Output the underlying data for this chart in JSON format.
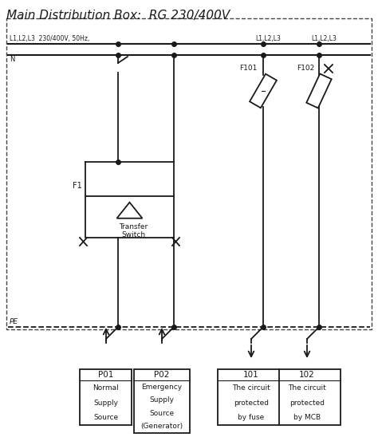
{
  "title": "Main Distribution Box:  RG 230/400V",
  "bg_color": "#ffffff",
  "line_color": "#1a1a1a",
  "label_L1L2L3_left": "L1,L2,L3  230/400V, 50Hz,",
  "label_N": "N",
  "label_L1L2L3_mid": "L1,L2,L3",
  "label_L1L2L3_right": "L1,L2,L3",
  "label_PE": "PE",
  "label_F1": "F1",
  "label_F101": "F101",
  "label_F102": "F102",
  "label_transfer": "Transfer",
  "label_switch": "Switch"
}
